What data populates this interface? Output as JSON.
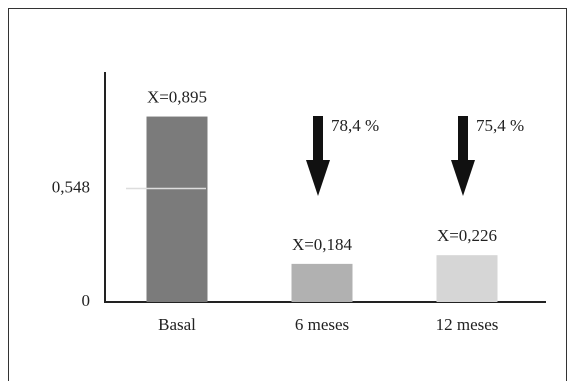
{
  "chart_data": {
    "type": "bar",
    "categories": [
      "Basal",
      "6 meses",
      "12 meses"
    ],
    "values": [
      0.895,
      0.184,
      0.226
    ],
    "value_labels": [
      "X=0,895",
      "X=0,184",
      "X=0,226"
    ],
    "colors": [
      "#7b7b7b",
      "#b1b1b1",
      "#d6d6d6"
    ],
    "ylim": [
      0,
      1.11
    ],
    "yticks": [
      0,
      {
        "value": 0.548,
        "label": "0,548"
      }
    ],
    "annotations": [
      "78,4 %",
      "75,4 %"
    ]
  }
}
